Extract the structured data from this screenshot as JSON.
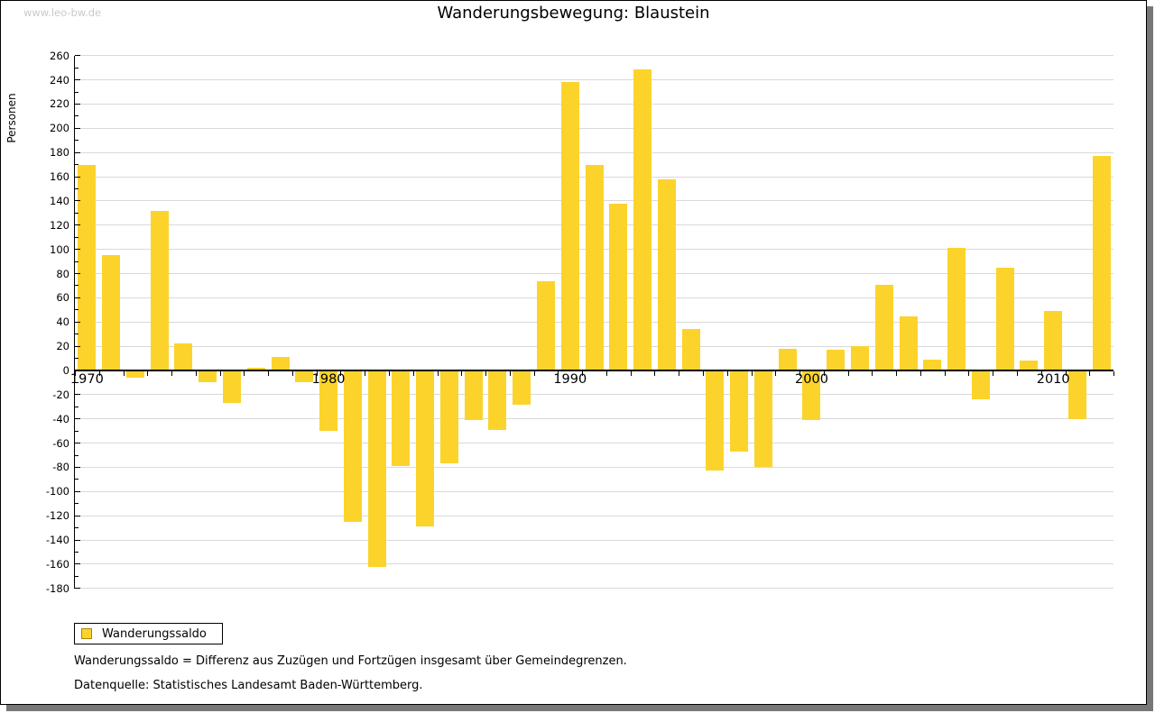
{
  "watermark": "www.leo-bw.de",
  "title": "Wanderungsbewegung: Blaustein",
  "legend": {
    "label": "Wanderungssaldo"
  },
  "notes": [
    "Wanderungssaldo = Differenz aus Zuzügen und Fortzügen insgesamt über Gemeindegrenzen.",
    "Datenquelle: Statistisches Landesamt Baden-Württemberg."
  ],
  "colors": {
    "bar": "#fcd32b",
    "bar_border": "#a8870a",
    "grid": "#d9d9d9",
    "axis": "#000000",
    "watermark": "#cacaca"
  },
  "chart_data": {
    "type": "bar",
    "title": "Wanderungsbewegung: Blaustein",
    "xlabel": "",
    "ylabel": "Personen",
    "series_name": "Wanderungssaldo",
    "ylim": [
      -180,
      260
    ],
    "y_tick_step": 20,
    "y_minor_tick_step": 10,
    "grid": true,
    "legend_position": "bottom-left",
    "x_tick_labels": [
      "1970",
      "1980",
      "1990",
      "2000",
      "2010"
    ],
    "years": [
      1970,
      1971,
      1972,
      1973,
      1974,
      1975,
      1976,
      1977,
      1978,
      1979,
      1980,
      1981,
      1982,
      1983,
      1984,
      1985,
      1986,
      1987,
      1988,
      1989,
      1990,
      1991,
      1992,
      1993,
      1994,
      1995,
      1996,
      1997,
      1998,
      1999,
      2000,
      2001,
      2002,
      2003,
      2004,
      2005,
      2006,
      2007,
      2008,
      2009,
      2010,
      2011,
      2012
    ],
    "values": [
      170,
      95,
      -6,
      132,
      22,
      -10,
      -27,
      2,
      11,
      -10,
      -50,
      -125,
      -162,
      -79,
      -129,
      -77,
      -41,
      -49,
      -28,
      74,
      238,
      170,
      138,
      249,
      158,
      34,
      -83,
      -67,
      -80,
      18,
      -41,
      17,
      20,
      71,
      45,
      9,
      101,
      -24,
      85,
      8,
      49,
      -40,
      177
    ]
  }
}
